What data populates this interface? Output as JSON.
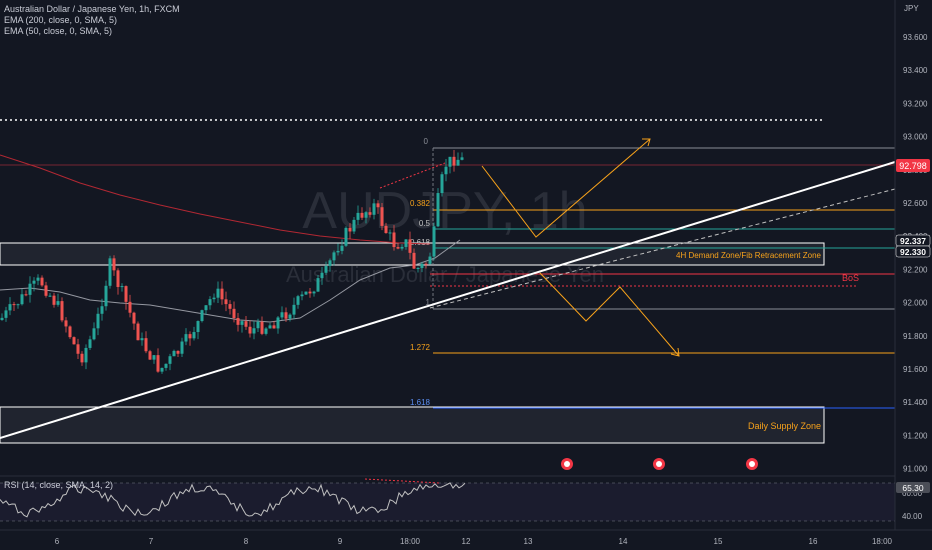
{
  "legend": {
    "symbol": "Australian Dollar / Japanese Yen, 1h, FXCM",
    "ema200": "EMA (200, close, 0, SMA, 5)",
    "ema50": "EMA (50, close, 0, SMA, 5)",
    "rsi": "RSI (14, close, SMA, 14, 2)"
  },
  "watermark": {
    "ticker": "AUDJPY, 1h",
    "name": "Australian Dollar / Japanese Yen"
  },
  "axis": {
    "currency": "JPY",
    "price_ticks": [
      "93.600",
      "93.400",
      "93.200",
      "93.000",
      "92.800",
      "92.600",
      "92.400",
      "92.200",
      "92.000",
      "91.800",
      "91.600",
      "91.400",
      "91.200",
      "91.000"
    ],
    "time_ticks": [
      "6",
      "7",
      "8",
      "9",
      "18:00",
      "12",
      "13",
      "14",
      "15",
      "16",
      "18:00"
    ],
    "rsi_ticks": [
      "60.00",
      "40.00"
    ]
  },
  "badges": {
    "current_price": "92.798",
    "level_a": "92.337",
    "level_b": "92.330",
    "rsi_value": "65.30"
  },
  "fib": {
    "l0": "0",
    "l0382": "0.382",
    "l05": "0.5",
    "l0618": "0.618",
    "l1": "1",
    "l1272": "1.272",
    "l1618": "1.618"
  },
  "zones": {
    "demand": "4H Demand Zone/Fib Retracement Zone",
    "supply": "Daily Supply Zone",
    "bos": "BoS"
  },
  "colors": {
    "background": "#131722",
    "bull": "#26a69a",
    "bear": "#ef5350",
    "fib": "#f7a21b",
    "price_badge": "#f23645",
    "rsi_line": "#c0c0c0"
  }
}
